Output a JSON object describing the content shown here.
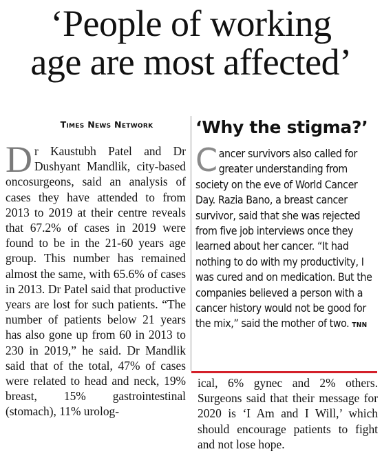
{
  "headline": {
    "line1": "‘People of working",
    "line2": "age are most affected’"
  },
  "byline": "Times News Network",
  "main_story": {
    "dropcap": "D",
    "text": "r Kaustubh Patel and Dr Dushyant Mandlik, city-based oncosurgeons, said an analysis of cases they have attended to from 2013 to 2019 at their centre reveals that 67.2% of cases in 2019 were found to be in the 21-60 years age group. This number has remained almost the same, with 65.6% of cases in 2013. Dr Patel said that productive years are lost for such patients. “The number of patients below 21 years has also gone up from 60 in 2013 to 230 in 2019,” he said. Dr Mandlik said that of the total, 47% of cases were related to head and neck, 19% breast, 15% gastrointestinal (stomach), 11% urolog-",
    "continued": "ical, 6% gynec and 2% others. Surgeons said that their message for 2020 is ‘I Am and I Will,’ which should encourage patients to fight and not lose hope."
  },
  "sidebar": {
    "title": "‘Why the stigma?’",
    "dropcap": "C",
    "text": "ancer survivors also called for greater understanding from society on the eve of World Cancer Day. Razia Bano, a breast cancer survivor, said that she was rejected from five job interviews once they learned about her cancer. “It had nothing to do with my productivity, I was cured and on medication. But the companies believed a person with a cancer history would not be good for the mix,” said the mother of two.",
    "signature": "TNN"
  },
  "colors": {
    "text": "#111111",
    "dropcap": "#7a7a7a",
    "rule": "#d4202a"
  }
}
